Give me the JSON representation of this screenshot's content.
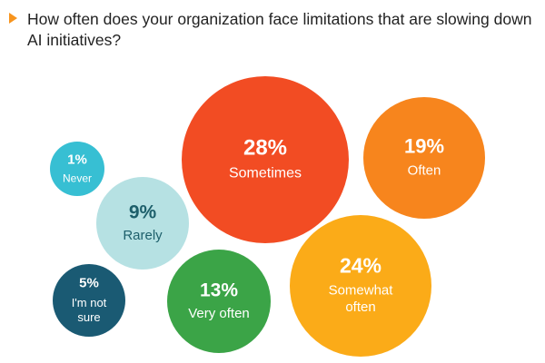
{
  "title": "How often does your organization face limitations that are slowing down AI initiatives?",
  "colors": {
    "marker": "#f7941d"
  },
  "chart_data": {
    "type": "bubble",
    "title": "How often does your organization face limitations that are slowing down AI initiatives?",
    "unit": "%",
    "series": [
      {
        "name": "Sometimes",
        "value": 28,
        "label": "28%",
        "lines": [
          "Sometimes"
        ],
        "color": "#f24c23",
        "text_color": "#ffffff"
      },
      {
        "name": "Often",
        "value": 19,
        "label": "19%",
        "lines": [
          "Often"
        ],
        "color": "#f7851d",
        "text_color": "#ffffff"
      },
      {
        "name": "Somewhat often",
        "value": 24,
        "label": "24%",
        "lines": [
          "Somewhat",
          "often"
        ],
        "color": "#fbab18",
        "text_color": "#ffffff"
      },
      {
        "name": "Very often",
        "value": 13,
        "label": "13%",
        "lines": [
          "Very often"
        ],
        "color": "#3ba447",
        "text_color": "#ffffff"
      },
      {
        "name": "Rarely",
        "value": 9,
        "label": "9%",
        "lines": [
          "Rarely"
        ],
        "color": "#b6e1e3",
        "text_color": "#1d5f6b"
      },
      {
        "name": "Never",
        "value": 1,
        "label": "1%",
        "lines": [
          "Never"
        ],
        "color": "#37bfd3",
        "text_color": "#ffffff"
      },
      {
        "name": "I'm not sure",
        "value": 5,
        "label": "5%",
        "lines": [
          "I'm not",
          "sure"
        ],
        "color": "#1a5a73",
        "text_color": "#ffffff"
      }
    ]
  }
}
